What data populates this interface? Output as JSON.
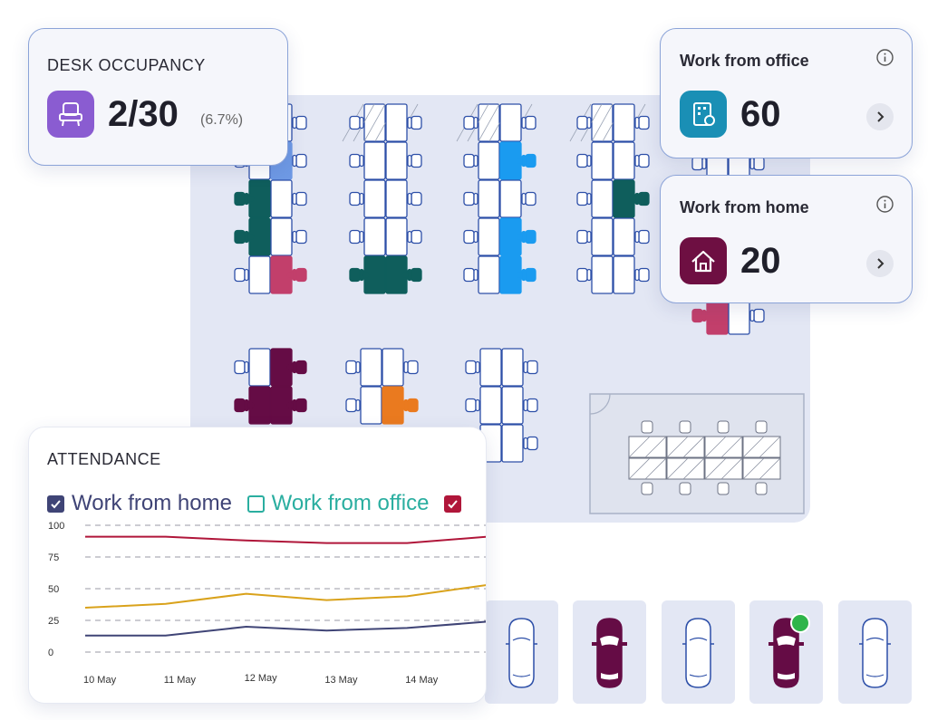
{
  "desk_occupancy": {
    "title": "DESK OCCUPANCY",
    "value": "2/30",
    "percent": "(6.7%)",
    "icon": "desk-chair-icon",
    "color": "#8a5cd1"
  },
  "work_from_office": {
    "title": "Work from office",
    "value": "60",
    "icon": "office-building-icon",
    "color": "#1a8fb5"
  },
  "work_from_home": {
    "title": "Work from home",
    "value": "20",
    "icon": "home-icon",
    "color": "#6e0f42"
  },
  "attendance": {
    "title": "ATTENDANCE",
    "legend": [
      {
        "label": "Work from home",
        "checked": true,
        "color": "#3f4476"
      },
      {
        "label": "Work from office",
        "checked": false,
        "color": "#2aaea0"
      },
      {
        "label": "",
        "checked": true,
        "color": "#b0163a"
      }
    ]
  },
  "chart_data": {
    "type": "line",
    "x": [
      "10 May",
      "11 May",
      "12 May",
      "13 May",
      "14 May",
      ""
    ],
    "yticks": [
      0,
      25,
      50,
      75,
      100
    ],
    "ylim": [
      0,
      100
    ],
    "grid": true,
    "series": [
      {
        "values": [
          91,
          91,
          88,
          86,
          86,
          91
        ],
        "color": "#b0163a"
      },
      {
        "values": [
          35,
          38,
          46,
          41,
          44,
          53
        ],
        "color": "#d9a21b"
      },
      {
        "values": [
          13,
          13,
          20,
          17,
          19,
          24
        ],
        "color": "#3f4476"
      }
    ]
  },
  "parking": [
    {
      "occupied": false
    },
    {
      "occupied": true
    },
    {
      "occupied": false
    },
    {
      "occupied": true,
      "status": "available",
      "status_color": "#2fb54a"
    },
    {
      "occupied": false
    }
  ],
  "colors": {
    "floor": "#e3e7f4",
    "desk_outline": "#2d4fa8",
    "teal": "#0f5e5c",
    "blue": "#1a9bf0",
    "pink": "#c23f6b",
    "plum": "#650c45",
    "orange": "#ea7a1f",
    "light_blue": "#6f9ae5"
  }
}
